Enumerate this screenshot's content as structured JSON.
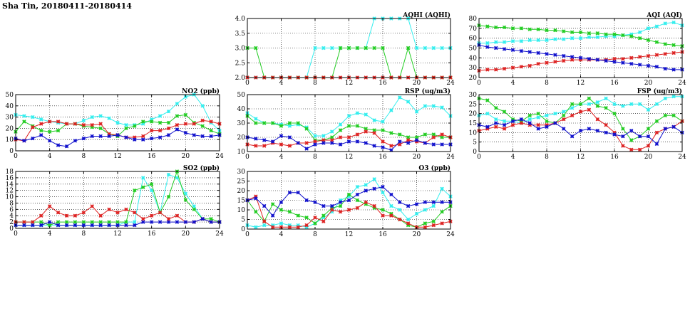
{
  "page_title": "Sha Tin, 20180411-20180414",
  "colors": {
    "cyan": "#33eeee",
    "green": "#22cc22",
    "red": "#dd2222",
    "blue": "#1111cc"
  },
  "chart_data": [
    {
      "id": "aqhi",
      "type": "line",
      "title": "AQHI (AQHI)",
      "x_ticks": [
        0,
        4,
        8,
        12,
        16,
        20,
        24
      ],
      "xlim": [
        0,
        24
      ],
      "ylim": [
        2,
        4
      ],
      "y_ticks": [
        "2.0",
        "2.5",
        "3.0",
        "3.5",
        "4.0"
      ],
      "grid": true,
      "series": [
        {
          "color": "cyan",
          "marker": "x",
          "values": [
            2,
            2,
            2,
            2,
            2,
            2,
            2,
            2,
            3,
            3,
            3,
            3,
            3,
            3,
            3,
            4,
            4,
            4,
            4,
            4,
            3,
            3,
            3,
            3,
            3
          ]
        },
        {
          "color": "green",
          "marker": "x",
          "values": [
            3,
            3,
            2,
            2,
            2,
            2,
            2,
            2,
            2,
            2,
            2,
            3,
            3,
            3,
            3,
            3,
            3,
            2,
            2,
            3,
            2,
            2,
            2,
            2,
            2
          ]
        },
        {
          "color": "red",
          "marker": "x",
          "values": [
            2,
            2,
            2,
            2,
            2,
            2,
            2,
            2,
            2,
            2,
            2,
            2,
            2,
            2,
            2,
            2,
            2,
            2,
            2,
            2,
            2,
            2,
            2,
            2,
            2
          ]
        }
      ]
    },
    {
      "id": "aqi",
      "type": "line",
      "title": "AQI (AQI)",
      "x_ticks": [
        0,
        4,
        8,
        12,
        16,
        20,
        24
      ],
      "xlim": [
        0,
        24
      ],
      "ylim": [
        20,
        80
      ],
      "y_ticks": [
        "20",
        "30",
        "40",
        "50",
        "60",
        "70",
        "80"
      ],
      "grid": true,
      "series": [
        {
          "color": "cyan",
          "marker": "x",
          "values": [
            55,
            55,
            56,
            56,
            57,
            57,
            58,
            58,
            58,
            59,
            59,
            60,
            60,
            61,
            61,
            62,
            62,
            63,
            64,
            66,
            70,
            72,
            75,
            76,
            73
          ]
        },
        {
          "color": "green",
          "marker": "x",
          "values": [
            73,
            72,
            71,
            71,
            70,
            70,
            69,
            69,
            68,
            68,
            67,
            66,
            66,
            65,
            65,
            64,
            64,
            63,
            62,
            60,
            58,
            56,
            54,
            53,
            52
          ]
        },
        {
          "color": "red",
          "marker": "x",
          "values": [
            27,
            28,
            28,
            29,
            30,
            31,
            32,
            34,
            35,
            36,
            37,
            38,
            38,
            38,
            38,
            38,
            39,
            39,
            40,
            41,
            42,
            43,
            44,
            45,
            46
          ]
        },
        {
          "color": "blue",
          "marker": "x",
          "values": [
            53,
            51,
            50,
            49,
            48,
            47,
            46,
            45,
            44,
            43,
            42,
            41,
            40,
            39,
            38,
            37,
            36,
            35,
            34,
            33,
            32,
            31,
            29,
            28,
            28
          ]
        }
      ]
    },
    {
      "id": "no2",
      "type": "line",
      "title": "NO2 (ppb)",
      "x_ticks": [
        0,
        4,
        8,
        12,
        16,
        20,
        24
      ],
      "xlim": [
        0,
        24
      ],
      "ylim": [
        0,
        50
      ],
      "y_ticks": [
        "0",
        "10",
        "20",
        "30",
        "40",
        "50"
      ],
      "grid": true,
      "series": [
        {
          "color": "cyan",
          "marker": "x",
          "values": [
            32,
            31,
            30,
            28,
            26,
            25,
            24,
            24,
            27,
            30,
            31,
            29,
            25,
            23,
            23,
            24,
            28,
            31,
            35,
            42,
            48,
            50,
            40,
            25,
            18
          ]
        },
        {
          "color": "green",
          "marker": "x",
          "values": [
            17,
            26,
            22,
            18,
            17,
            18,
            24,
            24,
            22,
            21,
            20,
            15,
            13,
            20,
            22,
            26,
            26,
            25,
            25,
            31,
            32,
            25,
            22,
            18,
            15
          ]
        },
        {
          "color": "red",
          "marker": "x",
          "values": [
            10,
            9,
            21,
            24,
            26,
            26,
            24,
            24,
            23,
            23,
            24,
            15,
            14,
            12,
            12,
            13,
            18,
            18,
            20,
            23,
            24,
            24,
            27,
            26,
            24
          ]
        },
        {
          "color": "blue",
          "marker": "x",
          "values": [
            11,
            9,
            11,
            14,
            9,
            5,
            4,
            9,
            11,
            13,
            13,
            13,
            14,
            12,
            10,
            10,
            11,
            12,
            14,
            19,
            16,
            14,
            13,
            13,
            14
          ]
        }
      ]
    },
    {
      "id": "rsp",
      "type": "line",
      "title": "RSP (ug/m3)",
      "x_ticks": [
        0,
        4,
        8,
        12,
        16,
        20,
        24
      ],
      "xlim": [
        0,
        24
      ],
      "ylim": [
        10,
        50
      ],
      "y_ticks": [
        "10",
        "20",
        "30",
        "40",
        "50"
      ],
      "grid": true,
      "series": [
        {
          "color": "cyan",
          "marker": "x",
          "values": [
            37,
            33,
            30,
            30,
            29,
            28,
            29,
            27,
            21,
            21,
            24,
            29,
            35,
            37,
            36,
            32,
            31,
            39,
            48,
            45,
            38,
            42,
            42,
            41,
            35
          ]
        },
        {
          "color": "green",
          "marker": "x",
          "values": [
            35,
            30,
            30,
            30,
            28,
            30,
            30,
            26,
            18,
            18,
            20,
            25,
            28,
            28,
            26,
            25,
            25,
            23,
            22,
            20,
            20,
            22,
            22,
            20,
            20
          ]
        },
        {
          "color": "red",
          "marker": "x",
          "values": [
            15,
            14,
            14,
            16,
            15,
            14,
            16,
            16,
            17,
            18,
            18,
            20,
            20,
            22,
            24,
            23,
            17,
            14,
            15,
            18,
            17,
            16,
            20,
            22,
            20
          ]
        },
        {
          "color": "blue",
          "marker": "x",
          "values": [
            20,
            19,
            18,
            17,
            21,
            20,
            16,
            12,
            15,
            16,
            16,
            15,
            17,
            17,
            16,
            14,
            13,
            11,
            17,
            16,
            18,
            16,
            15,
            15,
            15
          ]
        }
      ]
    },
    {
      "id": "fsp",
      "type": "line",
      "title": "FSP (ug/m3)",
      "x_ticks": [
        0,
        4,
        8,
        12,
        16,
        20,
        24
      ],
      "xlim": [
        0,
        24
      ],
      "ylim": [
        0,
        30
      ],
      "y_ticks": [
        "0",
        "5",
        "10",
        "15",
        "20",
        "25",
        "30"
      ],
      "grid": true,
      "series": [
        {
          "color": "cyan",
          "marker": "x",
          "values": [
            19,
            20,
            17,
            16,
            16,
            15,
            17,
            18,
            19,
            20,
            21,
            23,
            25,
            25,
            26,
            28,
            25,
            24,
            25,
            25,
            22,
            25,
            28,
            29,
            29
          ]
        },
        {
          "color": "green",
          "marker": "x",
          "values": [
            28,
            27,
            23,
            21,
            17,
            16,
            19,
            20,
            16,
            15,
            19,
            25,
            25,
            28,
            24,
            23,
            20,
            12,
            6,
            8,
            12,
            16,
            19,
            19,
            16
          ]
        },
        {
          "color": "red",
          "marker": "x",
          "values": [
            11,
            12,
            13,
            12,
            14,
            15,
            14,
            14,
            14,
            15,
            17,
            19,
            21,
            22,
            17,
            14,
            10,
            3,
            1,
            1,
            3,
            10,
            12,
            13,
            16
          ]
        },
        {
          "color": "blue",
          "marker": "x",
          "values": [
            14,
            13,
            15,
            14,
            16,
            17,
            15,
            12,
            13,
            15,
            12,
            8,
            11,
            12,
            11,
            10,
            9,
            8,
            11,
            8,
            8,
            4,
            12,
            13,
            10
          ]
        }
      ]
    },
    {
      "id": "so2",
      "type": "line",
      "title": "SO2 (ppb)",
      "x_ticks": [
        0,
        4,
        8,
        12,
        16,
        20,
        24
      ],
      "xlim": [
        0,
        24
      ],
      "ylim": [
        0,
        18
      ],
      "y_ticks": [
        "0",
        "2",
        "4",
        "6",
        "8",
        "10",
        "12",
        "14",
        "16",
        "18"
      ],
      "grid": true,
      "series": [
        {
          "color": "cyan",
          "marker": "x",
          "values": [
            1,
            1,
            1,
            1,
            1,
            1,
            1,
            1,
            1,
            1,
            1,
            1,
            1,
            2,
            2,
            16,
            12,
            5,
            17,
            16,
            11,
            7,
            3,
            2,
            2
          ]
        },
        {
          "color": "green",
          "marker": "x",
          "values": [
            2,
            2,
            2,
            2,
            1,
            2,
            2,
            2,
            2,
            2,
            2,
            2,
            2,
            2,
            12,
            13,
            14,
            5,
            10,
            18,
            9,
            6,
            3,
            3,
            2
          ]
        },
        {
          "color": "red",
          "marker": "x",
          "values": [
            2,
            2,
            2,
            4,
            7,
            5,
            4,
            4,
            5,
            7,
            4,
            6,
            5,
            6,
            5,
            3,
            4,
            5,
            3,
            4,
            2,
            2,
            3,
            2,
            2
          ]
        },
        {
          "color": "blue",
          "marker": "x",
          "values": [
            1,
            1,
            1,
            1,
            2,
            1,
            1,
            1,
            1,
            1,
            1,
            1,
            1,
            1,
            1,
            2,
            2,
            2,
            2,
            2,
            2,
            2,
            3,
            2,
            2
          ]
        }
      ]
    },
    {
      "id": "o3",
      "type": "line",
      "title": "O3 (ppb)",
      "x_ticks": [
        0,
        4,
        8,
        12,
        16,
        20,
        24
      ],
      "xlim": [
        0,
        24
      ],
      "ylim": [
        0,
        30
      ],
      "y_ticks": [
        "0",
        "5",
        "10",
        "15",
        "20",
        "25",
        "30"
      ],
      "grid": true,
      "series": [
        {
          "color": "cyan",
          "marker": "x",
          "values": [
            2,
            1,
            2,
            2,
            3,
            2,
            2,
            1,
            3,
            6,
            9,
            15,
            17,
            22,
            23,
            26,
            19,
            12,
            10,
            5,
            8,
            10,
            12,
            21,
            17
          ]
        },
        {
          "color": "green",
          "marker": "x",
          "values": [
            15,
            9,
            4,
            13,
            10,
            9,
            7,
            6,
            3,
            7,
            11,
            12,
            18,
            15,
            13,
            11,
            10,
            8,
            5,
            2,
            1,
            3,
            4,
            9,
            12
          ]
        },
        {
          "color": "red",
          "marker": "x",
          "values": [
            15,
            17,
            4,
            1,
            1,
            1,
            1,
            2,
            6,
            4,
            10,
            9,
            10,
            11,
            14,
            12,
            7,
            7,
            5,
            3,
            1,
            1,
            2,
            3,
            4
          ]
        },
        {
          "color": "blue",
          "marker": "x",
          "values": [
            15,
            16,
            12,
            7,
            14,
            19,
            19,
            15,
            14,
            12,
            12,
            14,
            15,
            18,
            20,
            21,
            22,
            18,
            14,
            12,
            13,
            14,
            14,
            14,
            14
          ]
        }
      ]
    }
  ]
}
